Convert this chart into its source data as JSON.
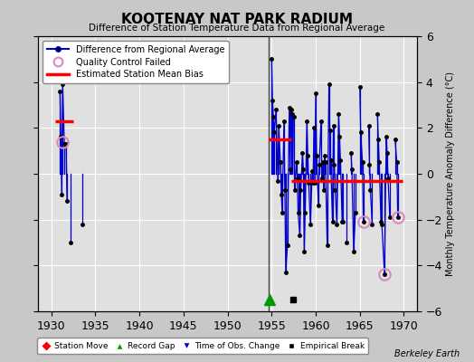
{
  "title": "KOOTENAY NAT PARK RADIUM",
  "subtitle": "Difference of Station Temperature Data from Regional Average",
  "ylabel_right": "Monthly Temperature Anomaly Difference (°C)",
  "watermark": "Berkeley Earth",
  "xlim": [
    1928.5,
    1971.5
  ],
  "ylim": [
    -6,
    6
  ],
  "yticks": [
    -6,
    -4,
    -2,
    0,
    2,
    4,
    6
  ],
  "xticks": [
    1930,
    1935,
    1940,
    1945,
    1950,
    1955,
    1960,
    1965,
    1970
  ],
  "bg_color": "#c8c8c8",
  "plot_bg_color": "#e0e0e0",
  "grid_color": "white",
  "line_color": "#0000cc",
  "bias_color": "red",
  "segment1": {
    "x_start": 1930.5,
    "x_end": 1932.5,
    "bias": 2.3
  },
  "segment2": {
    "x_start": 1954.7,
    "x_end": 1957.2,
    "bias": 1.5
  },
  "segment3": {
    "x_start": 1957.2,
    "x_end": 1969.8,
    "bias": -0.3
  },
  "data_points": [
    [
      1931.0,
      3.6
    ],
    [
      1931.1,
      1.6
    ],
    [
      1931.2,
      -0.9
    ],
    [
      1931.3,
      3.9
    ],
    [
      1931.5,
      1.3
    ],
    [
      1931.7,
      1.3
    ],
    [
      1931.8,
      -1.2
    ],
    [
      1932.2,
      -3.0
    ],
    [
      1933.5,
      -2.2
    ],
    [
      1955.0,
      5.0
    ],
    [
      1955.1,
      3.2
    ],
    [
      1955.2,
      2.5
    ],
    [
      1955.3,
      1.8
    ],
    [
      1955.5,
      2.8
    ],
    [
      1955.7,
      -0.3
    ],
    [
      1955.8,
      2.1
    ],
    [
      1956.0,
      0.5
    ],
    [
      1956.1,
      -0.9
    ],
    [
      1956.2,
      -1.7
    ],
    [
      1956.4,
      2.3
    ],
    [
      1956.5,
      -0.7
    ],
    [
      1956.6,
      -4.3
    ],
    [
      1956.8,
      -3.1
    ],
    [
      1957.0,
      2.9
    ],
    [
      1957.1,
      0.2
    ],
    [
      1957.2,
      2.8
    ],
    [
      1957.3,
      2.6
    ],
    [
      1957.5,
      2.5
    ],
    [
      1957.6,
      -0.7
    ],
    [
      1957.8,
      0.5
    ],
    [
      1957.9,
      -0.2
    ],
    [
      1958.0,
      -1.7
    ],
    [
      1958.2,
      -2.7
    ],
    [
      1958.3,
      -0.7
    ],
    [
      1958.5,
      0.9
    ],
    [
      1958.6,
      0.2
    ],
    [
      1958.7,
      -3.4
    ],
    [
      1958.8,
      -1.7
    ],
    [
      1959.0,
      2.3
    ],
    [
      1959.1,
      0.8
    ],
    [
      1959.2,
      -0.4
    ],
    [
      1959.4,
      -2.2
    ],
    [
      1959.6,
      0.1
    ],
    [
      1959.7,
      -0.4
    ],
    [
      1959.8,
      2.0
    ],
    [
      1959.9,
      -0.4
    ],
    [
      1960.0,
      3.5
    ],
    [
      1960.1,
      0.8
    ],
    [
      1960.3,
      -1.4
    ],
    [
      1960.4,
      0.4
    ],
    [
      1960.6,
      2.3
    ],
    [
      1960.7,
      -0.2
    ],
    [
      1960.8,
      0.5
    ],
    [
      1960.9,
      -0.7
    ],
    [
      1961.0,
      0.8
    ],
    [
      1961.1,
      0.5
    ],
    [
      1961.3,
      -3.1
    ],
    [
      1961.5,
      3.9
    ],
    [
      1961.6,
      1.9
    ],
    [
      1961.7,
      0.6
    ],
    [
      1961.9,
      -2.1
    ],
    [
      1962.0,
      2.1
    ],
    [
      1962.1,
      0.4
    ],
    [
      1962.2,
      -0.7
    ],
    [
      1962.4,
      -2.2
    ],
    [
      1962.6,
      2.6
    ],
    [
      1962.7,
      1.6
    ],
    [
      1962.8,
      0.6
    ],
    [
      1963.0,
      -2.1
    ],
    [
      1963.1,
      -2.1
    ],
    [
      1963.5,
      -3.0
    ],
    [
      1964.0,
      0.9
    ],
    [
      1964.1,
      0.2
    ],
    [
      1964.3,
      -3.4
    ],
    [
      1964.5,
      -1.7
    ],
    [
      1965.0,
      3.8
    ],
    [
      1965.1,
      1.8
    ],
    [
      1965.3,
      0.5
    ],
    [
      1965.4,
      -2.1
    ],
    [
      1966.0,
      2.1
    ],
    [
      1966.1,
      0.4
    ],
    [
      1966.2,
      -0.7
    ],
    [
      1966.4,
      -2.2
    ],
    [
      1967.0,
      2.6
    ],
    [
      1967.1,
      1.5
    ],
    [
      1967.2,
      0.5
    ],
    [
      1967.4,
      -2.1
    ],
    [
      1967.5,
      -2.2
    ],
    [
      1967.8,
      -4.4
    ],
    [
      1968.0,
      1.6
    ],
    [
      1968.1,
      0.9
    ],
    [
      1968.2,
      -0.2
    ],
    [
      1968.4,
      -1.9
    ],
    [
      1969.0,
      1.5
    ],
    [
      1969.2,
      0.5
    ],
    [
      1969.3,
      -1.9
    ]
  ],
  "qc_failed_points": [
    [
      1931.3,
      1.4
    ],
    [
      1967.8,
      -4.4
    ],
    [
      1965.4,
      -2.1
    ],
    [
      1969.3,
      -1.9
    ]
  ],
  "vertical_line_x": 1954.7,
  "record_gap_x": 1954.8,
  "record_gap_y": -5.5,
  "empirical_break_x": 1957.4,
  "empirical_break_y": -5.5
}
